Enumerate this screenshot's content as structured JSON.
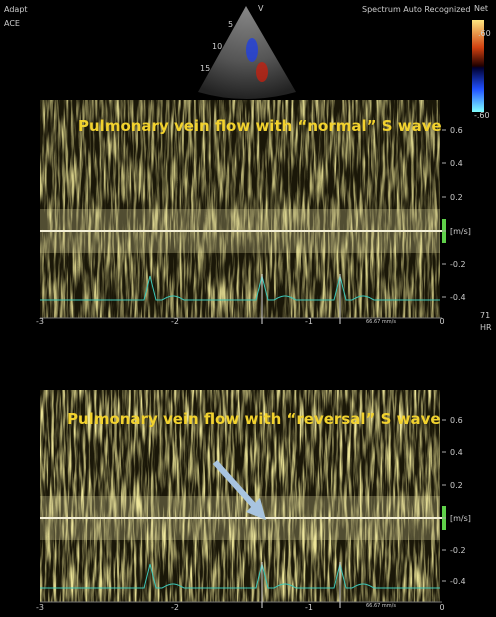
{
  "header": {
    "mode": [
      "Adapt",
      "ACE"
    ],
    "sector_label": "V",
    "depth_marks": [
      "5",
      "10",
      "15"
    ],
    "status": "Spectrum Auto Recognized",
    "color_map": {
      "title": "Net",
      "max": ".60",
      "min": "-.60"
    }
  },
  "panels": [
    {
      "title": "Pulmonary vein flow with “normal” S wave",
      "velocity_ticks": [
        "0.6",
        "0.4",
        "0.2",
        "[m/s]",
        "-0.2",
        "-0.4"
      ],
      "time_ticks": [
        "-3",
        "-2",
        "-1",
        "0"
      ],
      "sweep": "66.67 mm/s"
    },
    {
      "title": "Pulmonary vein flow with “reversal” S wave",
      "velocity_ticks": [
        "0.6",
        "0.4",
        "0.2",
        "[m/s]",
        "-0.2",
        "-0.4"
      ],
      "time_ticks": [
        "-3",
        "-2",
        "-1",
        "0"
      ],
      "sweep": "66.67 mm/s"
    }
  ],
  "heart_rate": {
    "value": "71",
    "unit": "HR"
  }
}
